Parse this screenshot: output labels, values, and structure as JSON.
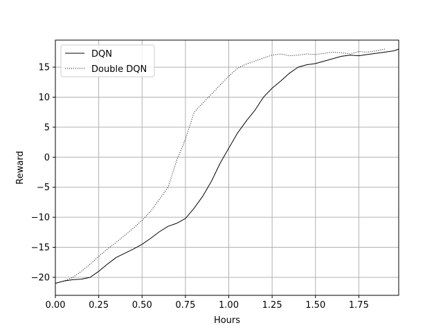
{
  "chart_data": {
    "type": "line",
    "title": "",
    "xlabel": "Hours",
    "ylabel": "Reward",
    "xlim": [
      0.0,
      1.98
    ],
    "ylim": [
      -23.0,
      19.5
    ],
    "xticks": [
      0.0,
      0.25,
      0.5,
      0.75,
      1.0,
      1.25,
      1.5,
      1.75
    ],
    "xtick_labels": [
      "0.00",
      "0.25",
      "0.50",
      "0.75",
      "1.00",
      "1.25",
      "1.50",
      "1.75"
    ],
    "yticks": [
      -20,
      -15,
      -10,
      -5,
      0,
      5,
      10,
      15
    ],
    "ytick_labels": [
      "−20",
      "−15",
      "−10",
      "−5",
      "0",
      "5",
      "10",
      "15"
    ],
    "grid": true,
    "legend_position": "top-left",
    "series": [
      {
        "name": "DQN",
        "style": "solid",
        "color": "#000000",
        "x": [
          0.0,
          0.05,
          0.1,
          0.15,
          0.2,
          0.25,
          0.3,
          0.35,
          0.4,
          0.45,
          0.5,
          0.55,
          0.6,
          0.65,
          0.7,
          0.75,
          0.8,
          0.85,
          0.9,
          0.95,
          1.0,
          1.05,
          1.1,
          1.15,
          1.2,
          1.25,
          1.3,
          1.35,
          1.4,
          1.45,
          1.5,
          1.55,
          1.6,
          1.65,
          1.7,
          1.75,
          1.8,
          1.85,
          1.9,
          1.95,
          1.98
        ],
        "y": [
          -21.0,
          -20.6,
          -20.4,
          -20.3,
          -20.0,
          -19.0,
          -17.8,
          -16.7,
          -16.0,
          -15.3,
          -14.5,
          -13.5,
          -12.4,
          -11.5,
          -11.0,
          -10.2,
          -8.5,
          -6.5,
          -4.0,
          -1.0,
          1.5,
          4.0,
          6.0,
          7.8,
          10.0,
          11.5,
          12.7,
          14.0,
          15.0,
          15.4,
          15.6,
          16.0,
          16.4,
          16.8,
          17.0,
          16.9,
          17.1,
          17.3,
          17.5,
          17.7,
          18.0
        ]
      },
      {
        "name": "Double DQN",
        "style": "dotted",
        "color": "#000000",
        "x": [
          0.0,
          0.05,
          0.1,
          0.15,
          0.2,
          0.25,
          0.3,
          0.35,
          0.4,
          0.45,
          0.5,
          0.55,
          0.6,
          0.65,
          0.7,
          0.75,
          0.8,
          0.85,
          0.9,
          0.95,
          1.0,
          1.05,
          1.1,
          1.15,
          1.2,
          1.25,
          1.3,
          1.35,
          1.4,
          1.45,
          1.5,
          1.55,
          1.6,
          1.65,
          1.7,
          1.75,
          1.8,
          1.85,
          1.9
        ],
        "y": [
          -21.0,
          -20.6,
          -20.0,
          -19.0,
          -17.8,
          -16.5,
          -15.3,
          -14.2,
          -13.0,
          -11.8,
          -10.5,
          -9.0,
          -7.0,
          -5.0,
          -0.5,
          3.0,
          7.5,
          9.0,
          10.5,
          12.0,
          13.5,
          14.8,
          15.5,
          16.0,
          16.5,
          17.0,
          17.2,
          16.9,
          17.0,
          17.2,
          17.1,
          17.3,
          17.5,
          17.4,
          17.2,
          17.6,
          17.5,
          17.7,
          18.0
        ]
      }
    ]
  }
}
